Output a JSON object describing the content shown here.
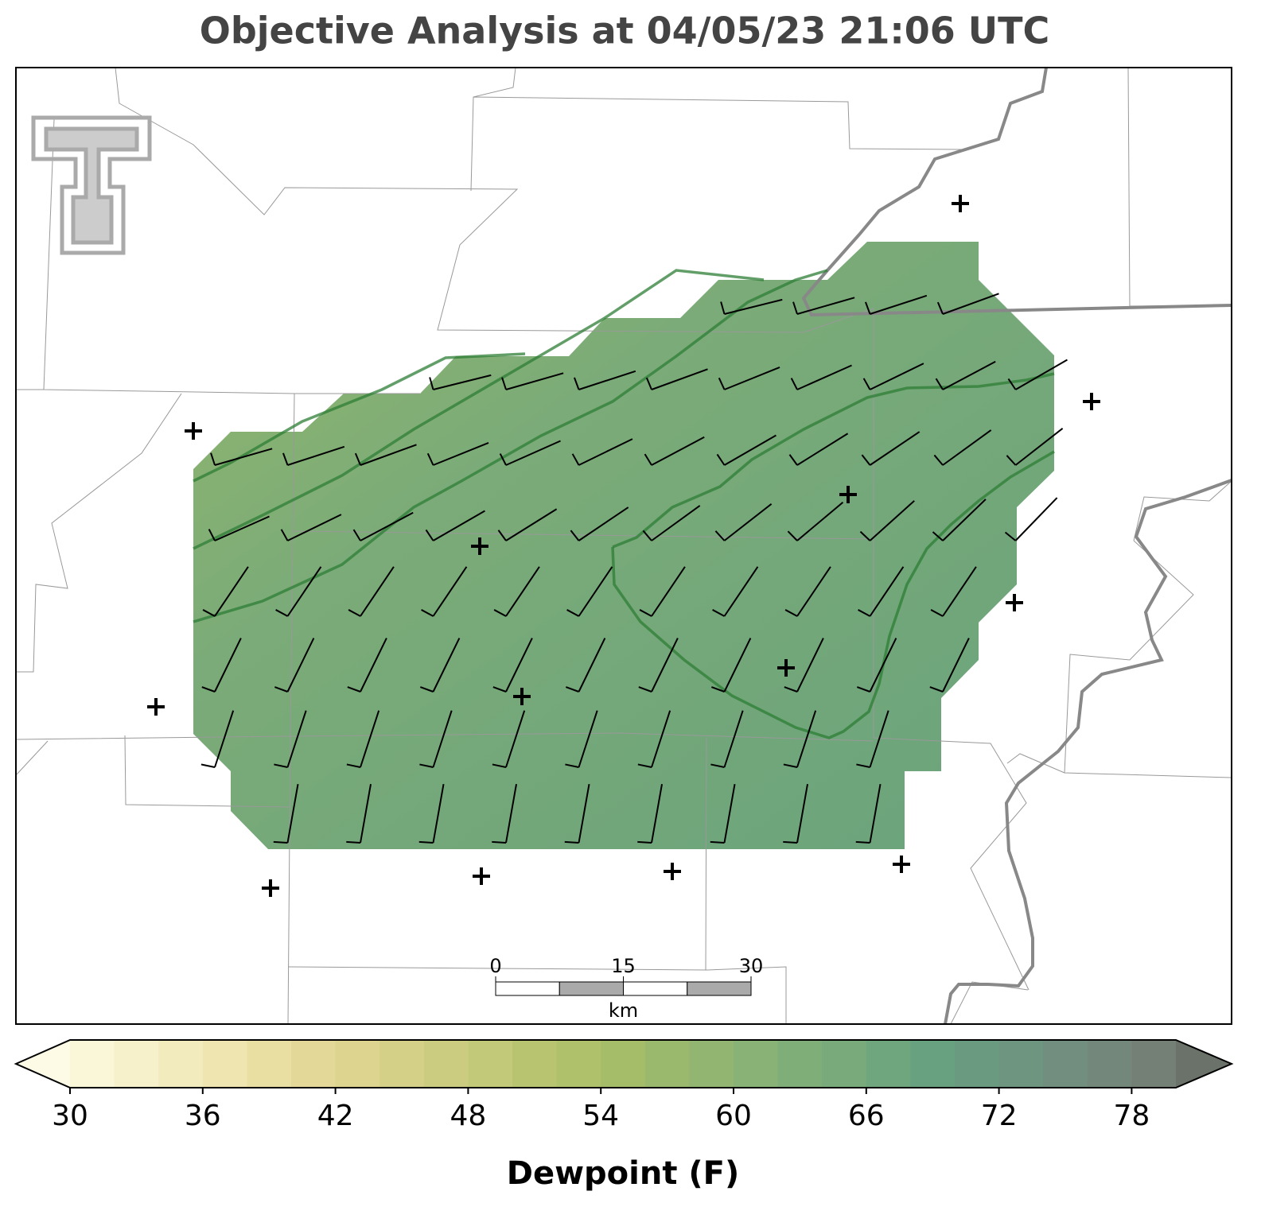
{
  "title": "Objective Analysis at 04/05/23 21:06 UTC",
  "colorbar": {
    "label": "Dewpoint (F)",
    "lim": [
      30,
      80
    ],
    "ticks": [
      30,
      36,
      42,
      48,
      54,
      60,
      66,
      72,
      78
    ],
    "colors": [
      "#faf7d8",
      "#f6f1ca",
      "#f2ebbd",
      "#eee5b0",
      "#e9dfa3",
      "#e3d898",
      "#dcd48f",
      "#d4d087",
      "#cbcc80",
      "#c2c978",
      "#b8c46f",
      "#afc16a",
      "#a5bd69",
      "#9bb96d",
      "#92b572",
      "#89b276",
      "#80ae79",
      "#78aa7c",
      "#70a67e",
      "#68a17f",
      "#6a9b80",
      "#6e9580",
      "#728e7e",
      "#73877b",
      "#747f75"
    ],
    "extend_colors": [
      "#fdfbe5",
      "#6b7269"
    ]
  },
  "scale_bar": {
    "ticks": [
      0,
      15,
      30
    ],
    "unit": "km"
  }
}
